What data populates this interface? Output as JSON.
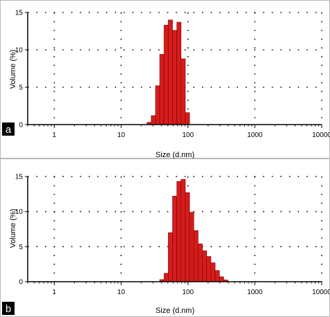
{
  "chart_data": [
    {
      "panel_label": "a",
      "type": "bar",
      "xlabel": "Size (d.nm)",
      "ylabel": "Volume (%)",
      "x_scale": "log",
      "xlim": [
        0.4,
        10000
      ],
      "ylim": [
        0,
        15
      ],
      "x_ticks": [
        1,
        10,
        100,
        1000,
        10000
      ],
      "x_tick_labels": [
        "1",
        "10",
        "100",
        "1000",
        "10000"
      ],
      "y_ticks": [
        0,
        5,
        10,
        15
      ],
      "y_tick_labels": [
        "0",
        "5",
        "10",
        "15"
      ],
      "grid": true,
      "bar_color": "#d61c1c",
      "bins": [
        {
          "from": 24.4,
          "to": 28.2,
          "value": 0.3
        },
        {
          "from": 28.2,
          "to": 32.7,
          "value": 1.2
        },
        {
          "from": 32.7,
          "to": 37.8,
          "value": 5.2
        },
        {
          "from": 37.8,
          "to": 43.8,
          "value": 9.4
        },
        {
          "from": 43.8,
          "to": 50.7,
          "value": 13.3
        },
        {
          "from": 50.7,
          "to": 58.8,
          "value": 14.0
        },
        {
          "from": 58.8,
          "to": 68.1,
          "value": 12.6
        },
        {
          "from": 68.1,
          "to": 78.8,
          "value": 13.7
        },
        {
          "from": 78.8,
          "to": 91.3,
          "value": 8.8
        },
        {
          "from": 91.3,
          "to": 105.7,
          "value": 1.6
        }
      ]
    },
    {
      "panel_label": "b",
      "type": "bar",
      "xlabel": "Size (d.nm)",
      "ylabel": "Volume (%)",
      "x_scale": "log",
      "xlim": [
        0.4,
        10000
      ],
      "ylim": [
        0,
        15
      ],
      "x_ticks": [
        1,
        10,
        100,
        1000,
        10000
      ],
      "x_tick_labels": [
        "1",
        "10",
        "100",
        "1000",
        "10000"
      ],
      "y_ticks": [
        0,
        5,
        10,
        15
      ],
      "y_tick_labels": [
        "0",
        "5",
        "10",
        "15"
      ],
      "grid": true,
      "bar_color": "#d61c1c",
      "bins": [
        {
          "from": 37.8,
          "to": 43.8,
          "value": 0.3
        },
        {
          "from": 43.8,
          "to": 50.7,
          "value": 1.2
        },
        {
          "from": 50.7,
          "to": 58.8,
          "value": 7.0
        },
        {
          "from": 58.8,
          "to": 68.1,
          "value": 12.2
        },
        {
          "from": 68.1,
          "to": 78.8,
          "value": 14.3
        },
        {
          "from": 78.8,
          "to": 91.3,
          "value": 14.6
        },
        {
          "from": 91.3,
          "to": 105.7,
          "value": 12.7
        },
        {
          "from": 105.7,
          "to": 122.4,
          "value": 9.9
        },
        {
          "from": 122.4,
          "to": 141.8,
          "value": 7.3
        },
        {
          "from": 141.8,
          "to": 164.2,
          "value": 5.4
        },
        {
          "from": 164.2,
          "to": 190.1,
          "value": 4.4
        },
        {
          "from": 190.1,
          "to": 220.2,
          "value": 3.6
        },
        {
          "from": 220.2,
          "to": 255.0,
          "value": 2.7
        },
        {
          "from": 255.0,
          "to": 295.3,
          "value": 1.6
        },
        {
          "from": 295.3,
          "to": 342.0,
          "value": 0.7
        },
        {
          "from": 342.0,
          "to": 396.1,
          "value": 0.25
        }
      ]
    }
  ]
}
